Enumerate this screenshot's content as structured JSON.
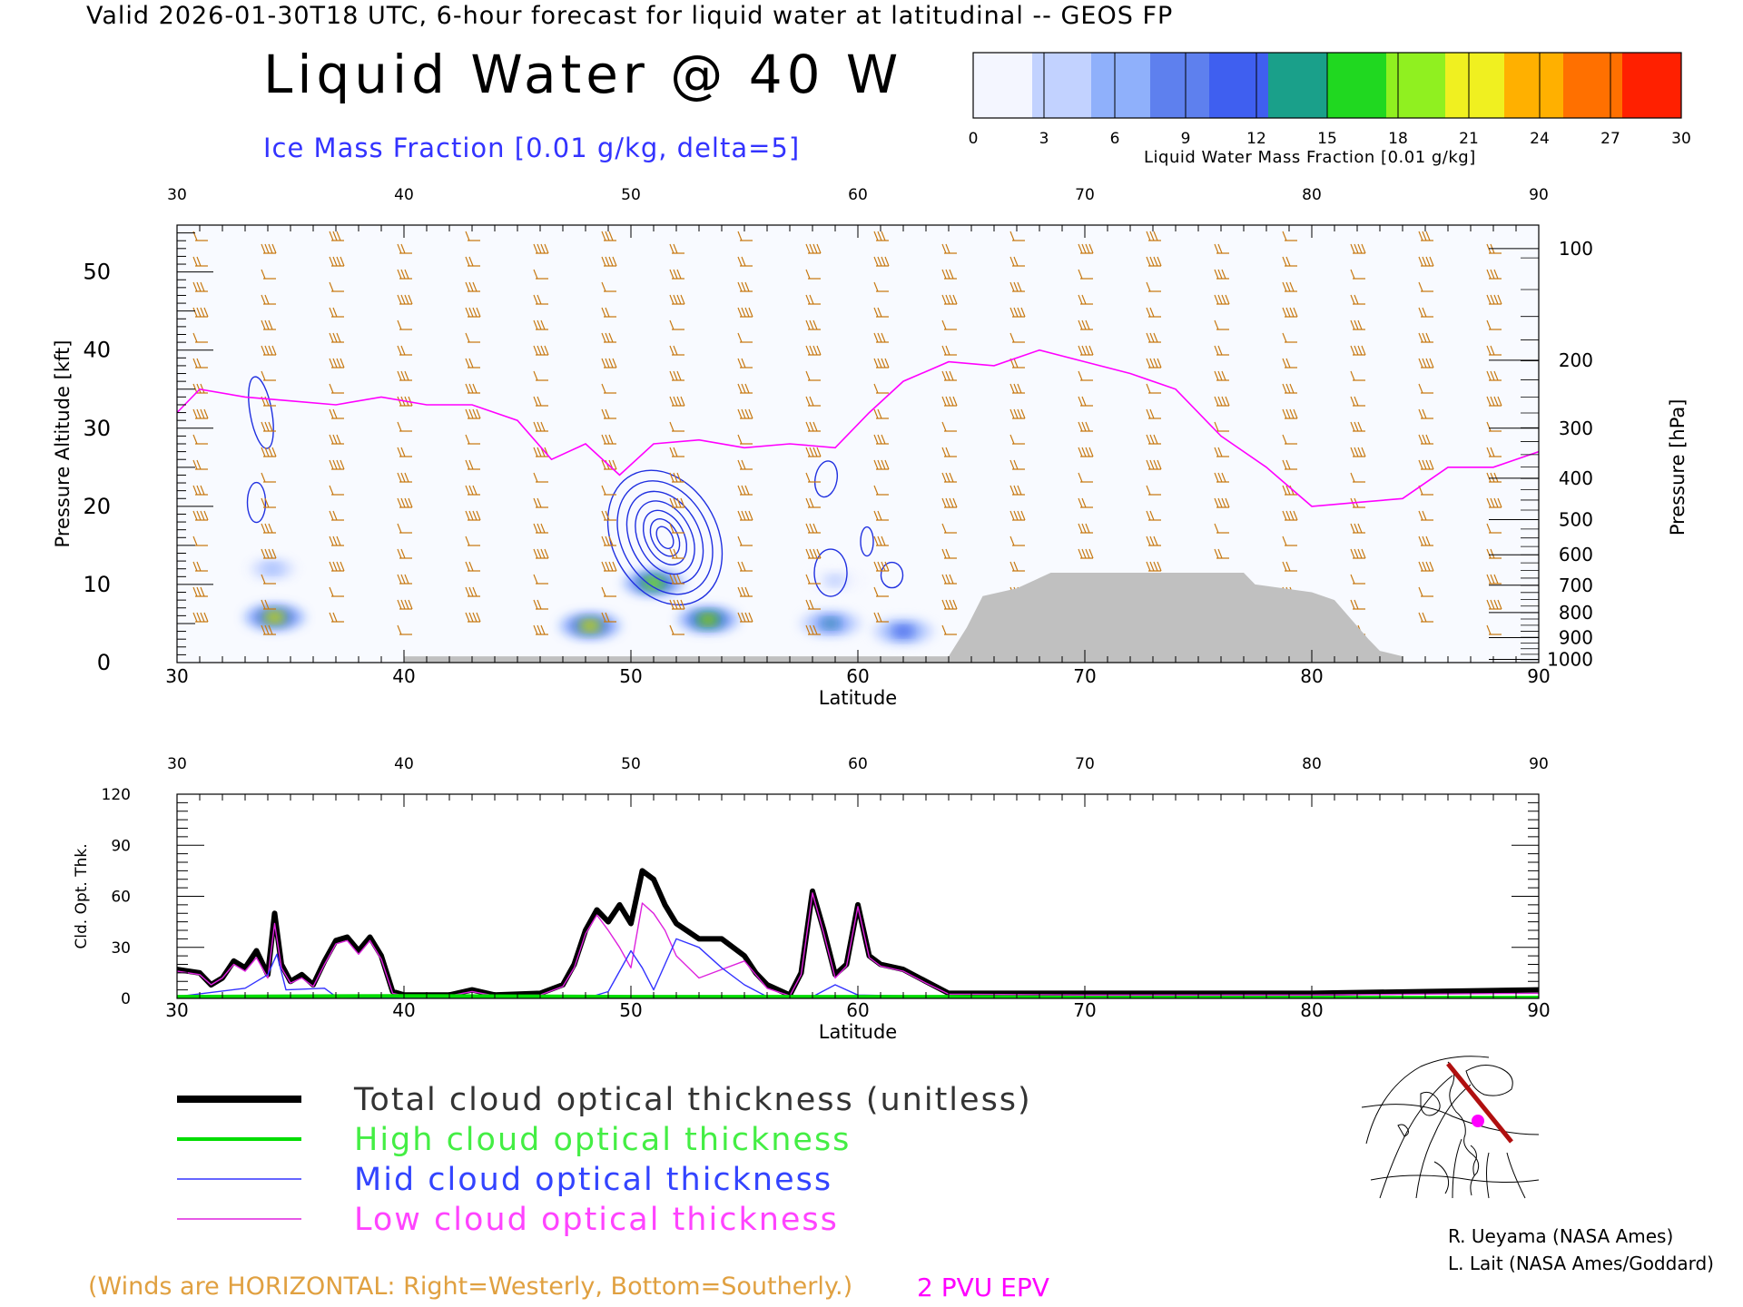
{
  "header": {
    "valid_line": "Valid 2026-01-30T18 UTC, 6-hour forecast for liquid water at latitudinal -- GEOS FP",
    "title": "Liquid Water @ 40 W",
    "ice_label": "Ice Mass Fraction [0.01 g/kg, delta=5]"
  },
  "colorbar": {
    "title": "Liquid Water Mass Fraction [0.01 g/kg]",
    "ticks": [
      "0",
      "3",
      "6",
      "9",
      "12",
      "15",
      "18",
      "21",
      "24",
      "27",
      "30"
    ],
    "colors": [
      "#f4f6ff",
      "#c2d2ff",
      "#8fb0fb",
      "#5e80ee",
      "#3f5ff0",
      "#1aa08a",
      "#20d820",
      "#90f020",
      "#f0f020",
      "#ffb000",
      "#ff7000",
      "#ff2000"
    ]
  },
  "chart_data": [
    {
      "type": "heatmap",
      "xlabel": "Latitude",
      "ylabel": "Pressure Altitude [kft]",
      "y2label": "Pressure [hPa]",
      "xlim": [
        30,
        90
      ],
      "ylim": [
        0,
        56
      ],
      "x_ticks": [
        "30",
        "40",
        "50",
        "60",
        "70",
        "80",
        "90"
      ],
      "y_ticks": [
        "0",
        "10",
        "20",
        "30",
        "40",
        "50"
      ],
      "y_tick_values": [
        0,
        10,
        20,
        30,
        40,
        50
      ],
      "pressure_ticks": [
        {
          "label": "100",
          "kft": 53
        },
        {
          "label": "200",
          "kft": 38.7
        },
        {
          "label": "300",
          "kft": 30
        },
        {
          "label": "400",
          "kft": 23.6
        },
        {
          "label": "500",
          "kft": 18.3
        },
        {
          "label": "600",
          "kft": 13.8
        },
        {
          "label": "700",
          "kft": 9.9
        },
        {
          "label": "800",
          "kft": 6.4
        },
        {
          "label": "900",
          "kft": 3.2
        },
        {
          "label": "1000",
          "kft": 0.4
        }
      ],
      "liquid_water_blobs": [
        {
          "lat": 34.3,
          "kft": 5.8,
          "value": 24
        },
        {
          "lat": 48.2,
          "kft": 4.7,
          "value": 24
        },
        {
          "lat": 51.0,
          "kft": 10.2,
          "value": 22
        },
        {
          "lat": 53.4,
          "kft": 5.5,
          "value": 23
        },
        {
          "lat": 58.8,
          "kft": 5.0,
          "value": 13
        },
        {
          "lat": 62.0,
          "kft": 4.0,
          "value": 11
        },
        {
          "lat": 34.2,
          "kft": 12.0,
          "value": 5
        },
        {
          "lat": 59.0,
          "kft": 10.5,
          "value": 4
        }
      ],
      "epv_2pvu_line": [
        [
          30,
          32
        ],
        [
          31,
          35
        ],
        [
          33,
          34
        ],
        [
          35,
          33.5
        ],
        [
          37,
          33
        ],
        [
          39,
          34
        ],
        [
          41,
          33
        ],
        [
          43,
          33
        ],
        [
          45,
          31
        ],
        [
          46.5,
          26
        ],
        [
          48,
          28
        ],
        [
          49.5,
          24
        ],
        [
          51,
          28
        ],
        [
          53,
          28.5
        ],
        [
          55,
          27.5
        ],
        [
          57,
          28
        ],
        [
          59,
          27.5
        ],
        [
          60.5,
          32
        ],
        [
          62,
          36
        ],
        [
          64,
          38.5
        ],
        [
          66,
          38
        ],
        [
          68,
          40
        ],
        [
          70,
          38.5
        ],
        [
          72,
          37
        ],
        [
          74,
          35
        ],
        [
          76,
          29
        ],
        [
          78,
          25
        ],
        [
          80,
          20
        ],
        [
          82,
          20.5
        ],
        [
          84,
          21
        ],
        [
          86,
          25
        ],
        [
          88,
          25
        ],
        [
          90,
          27
        ]
      ],
      "terrain": [
        [
          30,
          0
        ],
        [
          40,
          0
        ],
        [
          40,
          0.8
        ],
        [
          50,
          0.8
        ],
        [
          55,
          0.8
        ],
        [
          60,
          0.8
        ],
        [
          64,
          0.8
        ],
        [
          64.8,
          4.5
        ],
        [
          65.5,
          8.5
        ],
        [
          67,
          9.5
        ],
        [
          68.5,
          11.5
        ],
        [
          77,
          11.5
        ],
        [
          77.5,
          10
        ],
        [
          80,
          9
        ],
        [
          81,
          8
        ],
        [
          82.5,
          3
        ],
        [
          83,
          1.5
        ],
        [
          84,
          0.8
        ],
        [
          84,
          0
        ],
        [
          90,
          0
        ]
      ]
    },
    {
      "type": "line",
      "xlabel": "Latitude",
      "ylabel": "Cld. Opt. Thk.",
      "xlim": [
        30,
        90
      ],
      "ylim": [
        0,
        120
      ],
      "x_ticks": [
        "30",
        "40",
        "50",
        "60",
        "70",
        "80",
        "90"
      ],
      "y_ticks": [
        "0",
        "30",
        "60",
        "90",
        "120"
      ],
      "y_tick_values": [
        0,
        30,
        60,
        90,
        120
      ],
      "series": [
        {
          "color": "#000000",
          "values": [
            [
              30,
              17
            ],
            [
              31,
              15
            ],
            [
              31.5,
              8
            ],
            [
              32,
              12
            ],
            [
              32.5,
              22
            ],
            [
              33,
              18
            ],
            [
              33.5,
              28
            ],
            [
              34,
              14
            ],
            [
              34.3,
              50
            ],
            [
              34.6,
              20
            ],
            [
              35,
              10
            ],
            [
              35.5,
              14
            ],
            [
              36,
              8
            ],
            [
              36.5,
              22
            ],
            [
              37,
              34
            ],
            [
              37.5,
              36
            ],
            [
              38,
              28
            ],
            [
              38.5,
              36
            ],
            [
              39,
              25
            ],
            [
              39.5,
              4
            ],
            [
              40,
              2
            ],
            [
              42,
              2
            ],
            [
              43,
              5
            ],
            [
              44,
              2
            ],
            [
              46,
              3
            ],
            [
              47,
              8
            ],
            [
              47.5,
              20
            ],
            [
              48,
              40
            ],
            [
              48.5,
              52
            ],
            [
              49,
              45
            ],
            [
              49.5,
              55
            ],
            [
              50,
              44
            ],
            [
              50.5,
              75
            ],
            [
              51,
              70
            ],
            [
              51.5,
              55
            ],
            [
              52,
              44
            ],
            [
              53,
              35
            ],
            [
              54,
              35
            ],
            [
              55,
              25
            ],
            [
              55.5,
              15
            ],
            [
              56,
              8
            ],
            [
              57,
              2
            ],
            [
              57.5,
              15
            ],
            [
              58,
              63
            ],
            [
              58.5,
              40
            ],
            [
              59,
              14
            ],
            [
              59.5,
              20
            ],
            [
              60,
              55
            ],
            [
              60.5,
              25
            ],
            [
              61,
              20
            ],
            [
              62,
              17
            ],
            [
              63,
              10
            ],
            [
              64,
              3
            ],
            [
              70,
              3
            ],
            [
              80,
              3
            ],
            [
              85,
              4
            ],
            [
              90,
              5
            ]
          ]
        },
        {
          "color": "#00dd00",
          "values": [
            [
              30,
              1
            ],
            [
              40,
              1.5
            ],
            [
              50,
              1
            ],
            [
              60,
              1
            ],
            [
              64,
              1
            ],
            [
              70,
              0.5
            ],
            [
              80,
              0.5
            ],
            [
              90,
              0.5
            ]
          ]
        },
        {
          "color": "#3333ff",
          "values": [
            [
              30,
              1
            ],
            [
              33,
              6
            ],
            [
              34,
              14
            ],
            [
              34.4,
              26
            ],
            [
              34.8,
              5
            ],
            [
              36.5,
              6
            ],
            [
              37,
              1
            ],
            [
              40,
              0
            ],
            [
              48,
              0
            ],
            [
              49,
              4
            ],
            [
              50,
              28
            ],
            [
              50.5,
              18
            ],
            [
              51,
              5
            ],
            [
              52,
              35
            ],
            [
              53,
              30
            ],
            [
              54,
              18
            ],
            [
              55,
              8
            ],
            [
              56,
              1
            ],
            [
              58,
              1
            ],
            [
              59,
              8
            ],
            [
              60,
              2
            ],
            [
              64,
              1
            ],
            [
              70,
              0
            ],
            [
              90,
              0
            ]
          ]
        },
        {
          "color": "#dd22dd",
          "values": [
            [
              30,
              16
            ],
            [
              31,
              14
            ],
            [
              31.5,
              8
            ],
            [
              32,
              12
            ],
            [
              32.5,
              20
            ],
            [
              33,
              16
            ],
            [
              33.5,
              24
            ],
            [
              34,
              12
            ],
            [
              34.3,
              44
            ],
            [
              34.6,
              18
            ],
            [
              35,
              9
            ],
            [
              35.5,
              12
            ],
            [
              36,
              7
            ],
            [
              36.5,
              20
            ],
            [
              37,
              32
            ],
            [
              37.5,
              34
            ],
            [
              38,
              26
            ],
            [
              38.5,
              34
            ],
            [
              39,
              23
            ],
            [
              39.5,
              3
            ],
            [
              40,
              1.5
            ],
            [
              42,
              1.5
            ],
            [
              43,
              4
            ],
            [
              44,
              1.5
            ],
            [
              46,
              2
            ],
            [
              47,
              7
            ],
            [
              47.5,
              18
            ],
            [
              48,
              38
            ],
            [
              48.5,
              49
            ],
            [
              49,
              40
            ],
            [
              49.5,
              30
            ],
            [
              50,
              18
            ],
            [
              50.5,
              56
            ],
            [
              51,
              50
            ],
            [
              51.5,
              40
            ],
            [
              52,
              25
            ],
            [
              53,
              12
            ],
            [
              54,
              17
            ],
            [
              55,
              22
            ],
            [
              55.5,
              14
            ],
            [
              56,
              6
            ],
            [
              57,
              1.5
            ],
            [
              57.5,
              14
            ],
            [
              58,
              62
            ],
            [
              58.5,
              38
            ],
            [
              59,
              12
            ],
            [
              59.5,
              19
            ],
            [
              60,
              54
            ],
            [
              60.5,
              24
            ],
            [
              61,
              19
            ],
            [
              62,
              16
            ],
            [
              63,
              9
            ],
            [
              64,
              2.5
            ],
            [
              70,
              2
            ],
            [
              80,
              2
            ],
            [
              90,
              3
            ]
          ]
        }
      ]
    }
  ],
  "legend": {
    "total": {
      "label": "Total cloud optical thickness (unitless)",
      "color": "#000000"
    },
    "high": {
      "label": "High cloud optical thickness",
      "color": "#00dd00"
    },
    "mid": {
      "label": "Mid cloud optical thickness",
      "color": "#3333ff"
    },
    "low": {
      "label": "Low cloud optical thickness",
      "color": "#dd22dd"
    }
  },
  "notes": {
    "winds": "(Winds are HORIZONTAL: Right=Westerly, Bottom=Southerly.)",
    "epv": "2 PVU EPV"
  },
  "credits": [
    "R. Ueyama (NASA Ames)",
    "L. Lait (NASA Ames/Goddard)"
  ]
}
